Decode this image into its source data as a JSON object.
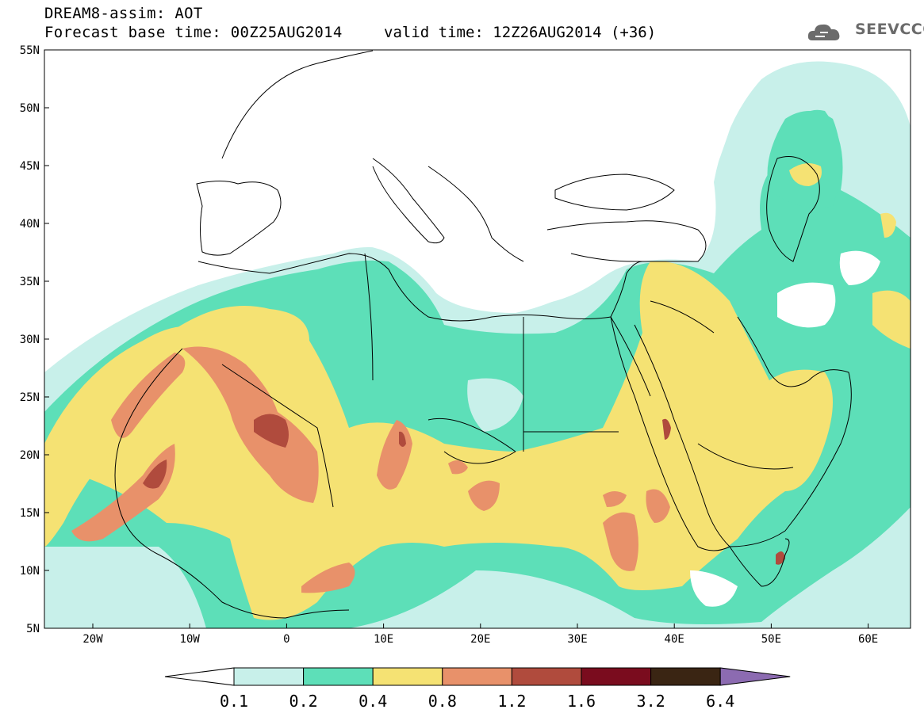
{
  "title": {
    "line1": "DREAM8-assim: AOT",
    "line2": "Forecast base time: 00Z25AUG2014",
    "valid": "valid time: 12Z26AUG2014 (+36)"
  },
  "logo": {
    "text": "SEEVCCC",
    "icon": "cloud-icon"
  },
  "map": {
    "lat_labels": [
      "55N",
      "50N",
      "45N",
      "40N",
      "35N",
      "30N",
      "25N",
      "20N",
      "15N",
      "10N",
      "5N"
    ],
    "lon_labels": [
      "20W",
      "10W",
      "0",
      "10E",
      "20E",
      "30E",
      "40E",
      "50E",
      "60E"
    ],
    "colors": {
      "c0": "#ffffff",
      "c1": "#c8f0ea",
      "c2": "#5ddfb8",
      "c3": "#f5e273",
      "c4": "#e8916a",
      "c5": "#b04b3d",
      "c6": "#7a0c1e",
      "c7": "#3a2513",
      "c8": "#8c6bb1"
    }
  },
  "legend": {
    "labels": [
      "0.1",
      "0.2",
      "0.4",
      "0.8",
      "1.2",
      "1.6",
      "3.2",
      "6.4"
    ],
    "colors": [
      "#ffffff",
      "#c8f0ea",
      "#5ddfb8",
      "#f5e273",
      "#e8916a",
      "#b04b3d",
      "#7a0c1e",
      "#3a2513",
      "#8c6bb1"
    ]
  }
}
